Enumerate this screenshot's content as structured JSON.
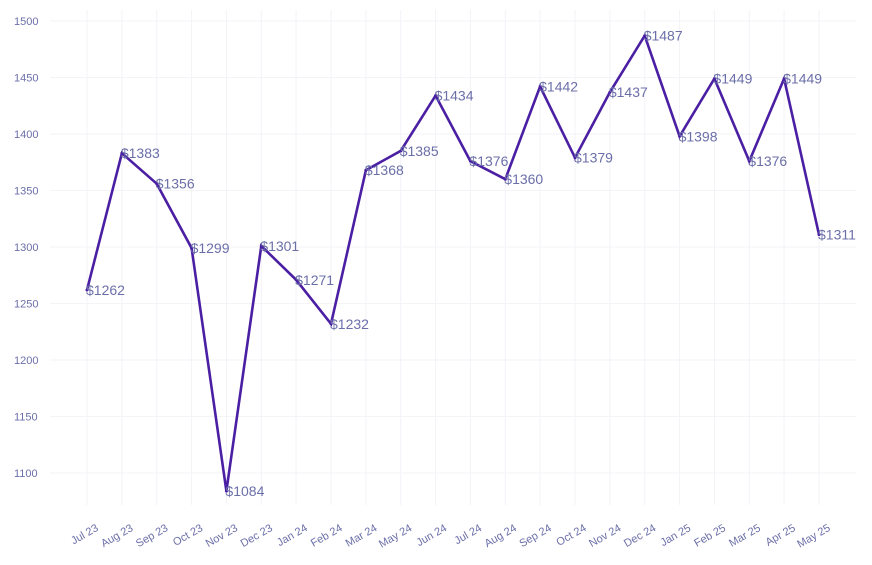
{
  "chart_data": {
    "type": "line",
    "title": "",
    "xlabel": "",
    "ylabel": "",
    "categories": [
      "Jul 23",
      "Aug 23",
      "Sep 23",
      "Oct 23",
      "Nov 23",
      "Dec 23",
      "Jan 24",
      "Feb 24",
      "Mar 24",
      "May 24",
      "Jun 24",
      "Jul 24",
      "Aug 24",
      "Sep 24",
      "Oct 24",
      "Nov 24",
      "Dec 24",
      "Jan 25",
      "Feb 25",
      "Mar 25",
      "Apr 25",
      "May 25"
    ],
    "values": [
      1262,
      1383,
      1356,
      1299,
      1084,
      1301,
      1271,
      1232,
      1368,
      1385,
      1434,
      1376,
      1360,
      1442,
      1379,
      1437,
      1487,
      1398,
      1449,
      1376,
      1449,
      1311
    ],
    "data_labels": [
      "$1262",
      "$1383",
      "$1356",
      "$1299",
      "$1084",
      "$1301",
      "$1271",
      "$1232",
      "$1368",
      "$1385",
      "$1434",
      "$1376",
      "$1360",
      "$1442",
      "$1379",
      "$1437",
      "$1487",
      "$1398",
      "$1449",
      "$1376",
      "$1449",
      "$1311"
    ],
    "yticks": [
      1100,
      1150,
      1200,
      1250,
      1300,
      1350,
      1400,
      1450,
      1500
    ],
    "ylim": [
      1075,
      1510
    ],
    "grid": true,
    "legend": "none",
    "colors": {
      "line": "#4b1fa3",
      "text": "#6b6fa8",
      "grid": "#f3f3f8"
    }
  }
}
